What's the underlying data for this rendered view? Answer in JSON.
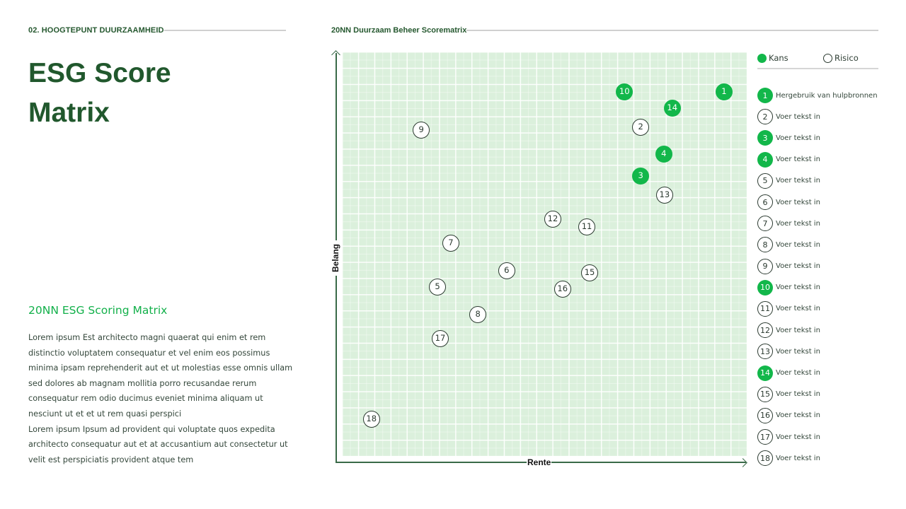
{
  "header": {
    "section_label": "02. HOOGTEPUNT DUURZAAMHEID",
    "title_line1": "ESG Score",
    "title_line2": "Matrix"
  },
  "description": {
    "subheading": "20NN ESG Scoring Matrix",
    "lines": [
      "Lorem ipsum Est architecto magni quaerat qui enim et rem",
      "distinctio voluptatem consequatur et vel enim eos possimus",
      "minima ipsam reprehenderit aut et ut molestias esse omnis ullam",
      "sed dolores ab magnam mollitia porro recusandae rerum",
      "consequatur rem odio ducimus eveniet minima aliquam ut",
      "nesciunt ut et et ut rem quasi perspici",
      "Lorem ipsum Ipsum ad provident qui voluptate quos expedita",
      "architecto consequatur aut et at accusantium aut consectetur ut",
      "velit est perspiciatis provident atque tem"
    ]
  },
  "colors": {
    "kans": "#12b74a",
    "risico_border": "#2b3a30",
    "plot_bg": "#dbf0dc",
    "heading": "#21582d",
    "subheading": "#12b04a"
  },
  "legend": {
    "kans_label": "Kans",
    "risico_label": "Risico",
    "items": [
      {
        "id": "1",
        "type": "kans",
        "label": "Hergebruik van hulpbronnen"
      },
      {
        "id": "2",
        "type": "risico",
        "label": "Voer tekst in"
      },
      {
        "id": "3",
        "type": "kans",
        "label": "Voer tekst in"
      },
      {
        "id": "4",
        "type": "kans",
        "label": "Voer tekst in"
      },
      {
        "id": "5",
        "type": "risico",
        "label": "Voer tekst in"
      },
      {
        "id": "6",
        "type": "risico",
        "label": "Voer tekst in"
      },
      {
        "id": "7",
        "type": "risico",
        "label": "Voer tekst in"
      },
      {
        "id": "8",
        "type": "risico",
        "label": "Voer tekst in"
      },
      {
        "id": "9",
        "type": "risico",
        "label": "Voer tekst in"
      },
      {
        "id": "10",
        "type": "kans",
        "label": "Voer tekst in"
      },
      {
        "id": "11",
        "type": "risico",
        "label": "Voer tekst in"
      },
      {
        "id": "12",
        "type": "risico",
        "label": "Voer tekst in"
      },
      {
        "id": "13",
        "type": "risico",
        "label": "Voer tekst in"
      },
      {
        "id": "14",
        "type": "kans",
        "label": "Voer tekst in"
      },
      {
        "id": "15",
        "type": "risico",
        "label": "Voer tekst in"
      },
      {
        "id": "16",
        "type": "risico",
        "label": "Voer tekst in"
      },
      {
        "id": "17",
        "type": "risico",
        "label": "Voer tekst in"
      },
      {
        "id": "18",
        "type": "risico",
        "label": "Voer tekst in"
      }
    ]
  },
  "chart_data": {
    "type": "scatter",
    "title": "20NN Duurzaam Beheer Scorematrix",
    "xlabel": "Rente",
    "ylabel": "Belang",
    "xlim": [
      0,
      100
    ],
    "ylim": [
      0,
      100
    ],
    "grid": true,
    "tick_labels": false,
    "legend_position": "right",
    "legend": [
      "Kans",
      "Risico"
    ],
    "series": [
      {
        "name": "Kans",
        "style": "filled-green",
        "points": [
          {
            "id": "1",
            "x": 94.4,
            "y": 90.0
          },
          {
            "id": "3",
            "x": 73.8,
            "y": 69.2
          },
          {
            "id": "4",
            "x": 79.5,
            "y": 74.7
          },
          {
            "id": "10",
            "x": 69.8,
            "y": 90.0
          },
          {
            "id": "14",
            "x": 81.6,
            "y": 86.0
          }
        ]
      },
      {
        "name": "Risico",
        "style": "outlined",
        "points": [
          {
            "id": "2",
            "x": 73.8,
            "y": 81.3
          },
          {
            "id": "5",
            "x": 23.6,
            "y": 41.8
          },
          {
            "id": "6",
            "x": 40.7,
            "y": 45.8
          },
          {
            "id": "7",
            "x": 26.9,
            "y": 52.6
          },
          {
            "id": "8",
            "x": 33.6,
            "y": 35.0
          },
          {
            "id": "9",
            "x": 19.6,
            "y": 80.6
          },
          {
            "id": "11",
            "x": 60.5,
            "y": 56.6
          },
          {
            "id": "12",
            "x": 52.1,
            "y": 58.6
          },
          {
            "id": "13",
            "x": 79.7,
            "y": 64.5
          },
          {
            "id": "15",
            "x": 61.2,
            "y": 45.3
          },
          {
            "id": "16",
            "x": 54.5,
            "y": 41.3
          },
          {
            "id": "17",
            "x": 24.3,
            "y": 29.0
          },
          {
            "id": "18",
            "x": 7.3,
            "y": 9.1
          }
        ]
      }
    ]
  }
}
